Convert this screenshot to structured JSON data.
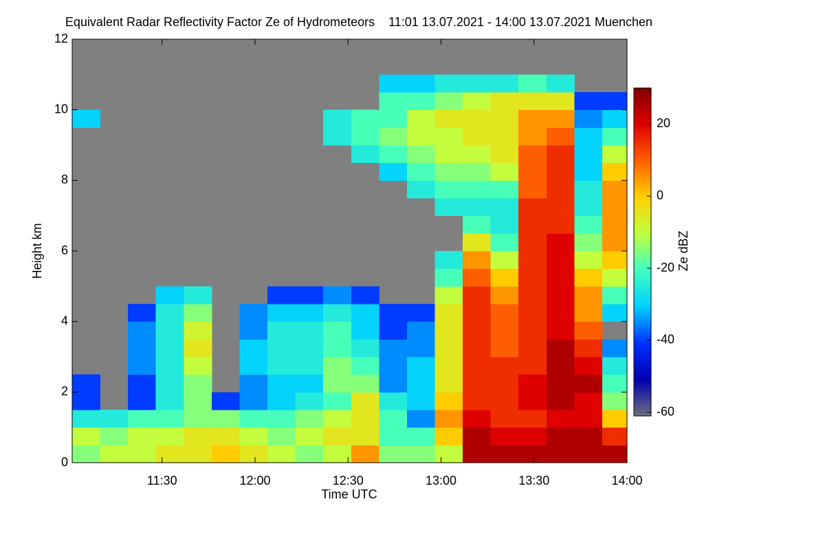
{
  "chart_data": {
    "type": "heatmap",
    "title": "Equivalent Radar Reflectivity Factor Ze of Hydrometeors    11:01 13.07.2021 - 14:00 13.07.2021 Muenchen",
    "x_label": "Time UTC",
    "y_label": "Height km",
    "colorbar_label": "Ze dBZ",
    "xlim": [
      661,
      840
    ],
    "xticks": [
      {
        "value": 690,
        "label": "11:30"
      },
      {
        "value": 720,
        "label": "12:00"
      },
      {
        "value": 750,
        "label": "12:30"
      },
      {
        "value": 780,
        "label": "13:00"
      },
      {
        "value": 810,
        "label": "13:30"
      },
      {
        "value": 840,
        "label": "14:00"
      }
    ],
    "ylim": [
      0,
      12
    ],
    "yticks": [
      0,
      2,
      4,
      6,
      8,
      10,
      12
    ],
    "zlim": [
      -61,
      30
    ],
    "zticks": [
      -60,
      -40,
      -20,
      0,
      20
    ],
    "background": "#808080",
    "colormap": [
      "#6e6e80",
      "#0000b0",
      "#0030ff",
      "#00d0ff",
      "#40ffc0",
      "#c0ff40",
      "#ffd000",
      "#ff6000",
      "#e00000",
      "#800000"
    ],
    "xbins": [
      661,
      670,
      679,
      688,
      697,
      706,
      715,
      724,
      733,
      742,
      751,
      760,
      769,
      778,
      787,
      796,
      805,
      814,
      823,
      832,
      840
    ],
    "ybins": [
      0,
      0.5,
      1,
      1.5,
      2,
      2.5,
      3,
      3.5,
      4,
      4.5,
      5,
      5.5,
      6,
      6.5,
      7,
      7.5,
      8,
      8.5,
      9,
      9.5,
      10,
      10.5,
      11,
      11.5,
      12
    ],
    "values": [
      [
        -15,
        -10,
        -25,
        -40,
        -40,
        null,
        null,
        null,
        null,
        null,
        null,
        null,
        null,
        null,
        null,
        null,
        null,
        null,
        null,
        -30,
        null,
        null,
        null,
        null
      ],
      [
        -10,
        -15,
        -25,
        null,
        null,
        null,
        null,
        null,
        null,
        null,
        null,
        null,
        null,
        null,
        null,
        null,
        null,
        null,
        null,
        null,
        null,
        null,
        null,
        null
      ],
      [
        -10,
        -10,
        -20,
        -40,
        -40,
        -35,
        -35,
        -35,
        -40,
        null,
        null,
        null,
        null,
        null,
        null,
        null,
        null,
        null,
        null,
        null,
        null,
        null,
        null,
        null
      ],
      [
        -5,
        -10,
        -20,
        -25,
        -25,
        -25,
        -25,
        -25,
        -25,
        -30,
        null,
        null,
        null,
        null,
        null,
        null,
        null,
        null,
        null,
        null,
        null,
        null,
        null,
        null
      ],
      [
        -5,
        -5,
        -15,
        -15,
        -15,
        -10,
        -5,
        -8,
        -15,
        -25,
        null,
        null,
        null,
        null,
        null,
        null,
        null,
        null,
        null,
        null,
        null,
        null,
        null,
        null
      ],
      [
        0,
        -5,
        -15,
        -40,
        null,
        null,
        null,
        null,
        null,
        null,
        null,
        null,
        null,
        null,
        null,
        null,
        null,
        null,
        null,
        null,
        null,
        null,
        null,
        null
      ],
      [
        -5,
        -10,
        -20,
        -35,
        -35,
        -30,
        -30,
        -35,
        -35,
        null,
        null,
        null,
        null,
        null,
        null,
        null,
        null,
        null,
        null,
        null,
        null,
        null,
        null,
        null
      ],
      [
        -10,
        -15,
        -20,
        -30,
        -30,
        -25,
        -25,
        -25,
        -30,
        -40,
        null,
        null,
        null,
        null,
        null,
        null,
        null,
        null,
        null,
        null,
        null,
        null,
        null,
        null
      ],
      [
        -15,
        -10,
        -15,
        -25,
        -30,
        -25,
        -25,
        -25,
        -30,
        -40,
        null,
        null,
        null,
        null,
        null,
        null,
        null,
        null,
        null,
        null,
        null,
        null,
        null,
        null
      ],
      [
        -10,
        -5,
        -10,
        -20,
        -15,
        -15,
        -20,
        -20,
        -25,
        -35,
        null,
        null,
        null,
        null,
        null,
        null,
        null,
        null,
        -25,
        -25,
        null,
        null,
        null,
        null
      ],
      [
        5,
        -5,
        -5,
        -5,
        -15,
        -20,
        -25,
        -30,
        -30,
        -40,
        null,
        null,
        null,
        null,
        null,
        null,
        null,
        -25,
        -20,
        -20,
        null,
        null,
        null,
        null
      ],
      [
        -15,
        -20,
        -20,
        -25,
        -35,
        -35,
        -35,
        -40,
        -40,
        null,
        null,
        null,
        null,
        null,
        null,
        null,
        -30,
        -20,
        -15,
        -20,
        -20,
        -30,
        null,
        null
      ],
      [
        -15,
        -20,
        -35,
        -30,
        -30,
        -30,
        -35,
        -35,
        -40,
        null,
        null,
        null,
        null,
        null,
        null,
        -25,
        -20,
        -15,
        -10,
        -10,
        -20,
        -30,
        null,
        null
      ],
      [
        -10,
        0,
        5,
        0,
        -5,
        -5,
        -5,
        -5,
        -5,
        -10,
        -20,
        -25,
        null,
        null,
        -25,
        -20,
        -15,
        -10,
        -10,
        -5,
        -15,
        -25,
        null,
        null
      ],
      [
        25,
        25,
        20,
        15,
        15,
        15,
        15,
        15,
        15,
        15,
        10,
        5,
        -5,
        -20,
        -25,
        -20,
        -15,
        -10,
        -5,
        -5,
        -10,
        -25,
        null,
        null
      ],
      [
        25,
        20,
        15,
        15,
        15,
        15,
        10,
        10,
        10,
        5,
        0,
        -10,
        -20,
        -25,
        -25,
        -20,
        -10,
        -5,
        -5,
        -5,
        -5,
        -25,
        null,
        null
      ],
      [
        25,
        20,
        15,
        20,
        20,
        15,
        15,
        15,
        15,
        15,
        15,
        15,
        15,
        15,
        15,
        10,
        10,
        10,
        5,
        5,
        -5,
        -20,
        null,
        null
      ],
      [
        25,
        25,
        20,
        25,
        25,
        25,
        25,
        20,
        20,
        20,
        20,
        20,
        20,
        15,
        15,
        15,
        15,
        15,
        10,
        5,
        -5,
        -25,
        null,
        null
      ],
      [
        25,
        25,
        20,
        20,
        25,
        20,
        15,
        10,
        5,
        5,
        0,
        -10,
        -15,
        -20,
        -25,
        -25,
        -30,
        -30,
        -30,
        -35,
        -40,
        null,
        null,
        null
      ],
      [
        25,
        15,
        0,
        -15,
        -20,
        -25,
        -35,
        null,
        -30,
        -20,
        -10,
        0,
        5,
        5,
        5,
        5,
        0,
        -10,
        -20,
        -30,
        -40,
        null,
        null,
        null
      ]
    ]
  }
}
